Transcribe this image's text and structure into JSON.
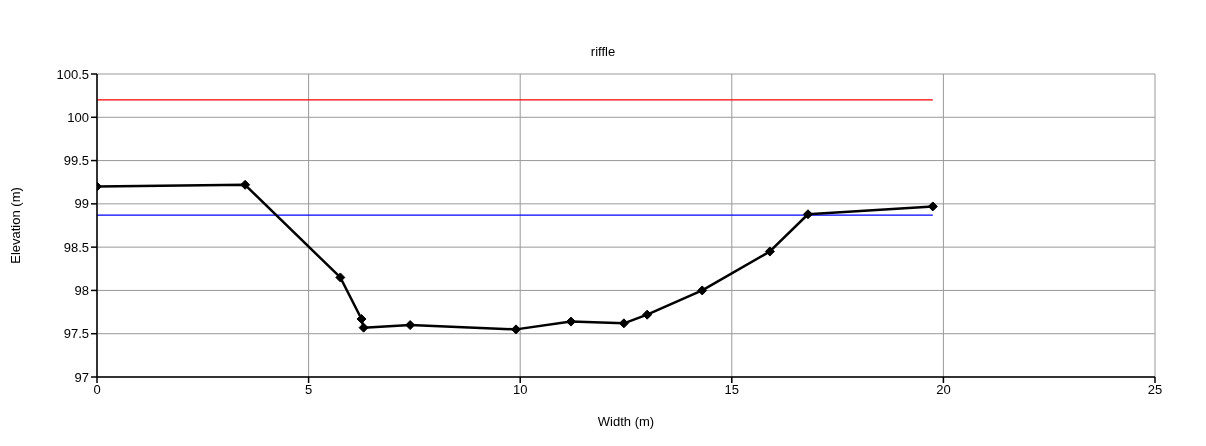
{
  "chart_data": {
    "type": "line",
    "title": "riffle",
    "xlabel": "Width (m)",
    "ylabel": "Elevation (m)",
    "xlim": [
      0,
      25
    ],
    "xticks": [
      0,
      5,
      10,
      15,
      20,
      25
    ],
    "ylim": [
      97,
      100.5
    ],
    "yticks": [
      97,
      97.5,
      98,
      98.5,
      99,
      99.5,
      100,
      100.5
    ],
    "grid": true,
    "series": [
      {
        "color": "#ff0000",
        "x": [
          0,
          19.75
        ],
        "values": [
          100.2,
          100.2
        ],
        "marker": "none"
      },
      {
        "color": "#0000ff",
        "x": [
          0,
          19.75
        ],
        "values": [
          98.87,
          98.87
        ],
        "marker": "none"
      },
      {
        "color": "#000000",
        "marker": "diamond",
        "x": [
          0,
          3.5,
          5.75,
          6.25,
          6.3,
          7.4,
          9.9,
          11.2,
          12.45,
          13.0,
          14.3,
          15.9,
          16.8,
          19.75
        ],
        "values": [
          99.2,
          99.22,
          98.15,
          97.67,
          97.57,
          97.6,
          97.55,
          97.64,
          97.62,
          97.72,
          98.0,
          98.45,
          98.88,
          98.97
        ]
      }
    ]
  }
}
